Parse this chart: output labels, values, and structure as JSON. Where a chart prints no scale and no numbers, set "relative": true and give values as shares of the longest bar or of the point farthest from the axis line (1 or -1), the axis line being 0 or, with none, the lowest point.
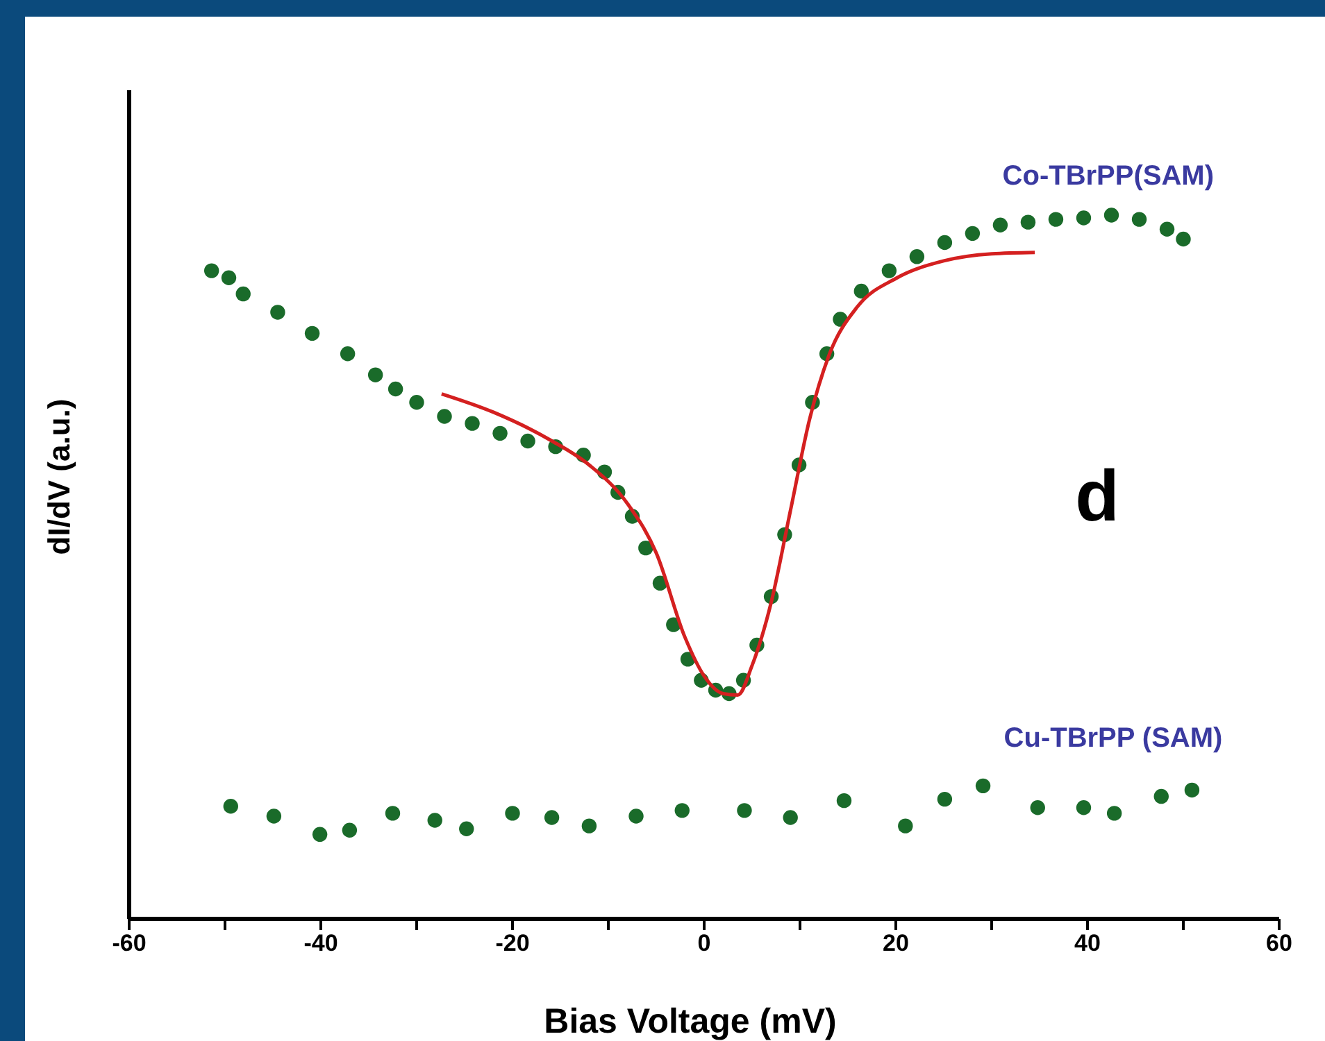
{
  "chart_data": {
    "type": "scatter",
    "xlabel": "Bias Voltage (mV)",
    "ylabel": "dI/dV (a.u.)",
    "relative": true,
    "xlim": [
      -60,
      60
    ],
    "xticks": [
      -60,
      {
        "value": -50,
        "label": null
      },
      -40,
      {
        "value": -30,
        "label": null
      },
      -20,
      {
        "value": -10,
        "label": null
      },
      0,
      {
        "value": 10,
        "label": null
      },
      20,
      {
        "value": 30,
        "label": null
      },
      40,
      {
        "value": 50,
        "label": null
      },
      60
    ],
    "marker": "circle",
    "grid": false,
    "annotations": [
      "d"
    ],
    "series": [
      {
        "name": "Co-TBrPP(SAM)",
        "color": "#1a6b2a",
        "x": [
          -51.4,
          -49.6,
          -48.1,
          -44.5,
          -40.9,
          -37.2,
          -34.3,
          -32.2,
          -30.0,
          -27.1,
          -24.2,
          -21.3,
          -18.4,
          -15.5,
          -12.6,
          -10.4,
          -9.0,
          -7.5,
          -6.1,
          -4.6,
          -3.2,
          -1.7,
          -0.3,
          1.2,
          2.6,
          4.1,
          5.5,
          7.0,
          8.4,
          9.9,
          11.3,
          12.8,
          14.2,
          16.4,
          19.3,
          22.2,
          25.1,
          28.0,
          30.9,
          33.8,
          36.7,
          39.6,
          42.5,
          45.4,
          48.3,
          50.0
        ],
        "values": [
          0.921,
          0.911,
          0.888,
          0.862,
          0.832,
          0.803,
          0.773,
          0.753,
          0.734,
          0.714,
          0.704,
          0.69,
          0.679,
          0.671,
          0.659,
          0.635,
          0.606,
          0.572,
          0.527,
          0.477,
          0.418,
          0.369,
          0.339,
          0.325,
          0.32,
          0.339,
          0.389,
          0.458,
          0.546,
          0.645,
          0.734,
          0.803,
          0.852,
          0.892,
          0.921,
          0.941,
          0.961,
          0.974,
          0.986,
          0.99,
          0.994,
          0.996,
          1.0,
          0.994,
          0.98,
          0.966
        ]
      },
      {
        "type": "line",
        "color": "#d42020",
        "marker": "none",
        "x": [
          -27.4,
          -22,
          -16,
          -12,
          -8,
          -5,
          -2,
          0,
          2,
          3.5,
          5,
          7,
          9,
          11,
          13,
          16,
          20,
          25,
          30,
          34.5
        ],
        "values": [
          0.746,
          0.72,
          0.68,
          0.645,
          0.59,
          0.52,
          0.4,
          0.345,
          0.32,
          0.318,
          0.36,
          0.45,
          0.58,
          0.71,
          0.8,
          0.87,
          0.91,
          0.935,
          0.945,
          0.947
        ]
      },
      {
        "name": "Cu-TBrPP (SAM)",
        "color": "#1a6b2a",
        "x": [
          -49.4,
          -44.9,
          -40.1,
          -37,
          -32.5,
          -28.1,
          -24.8,
          -20,
          -15.9,
          -12,
          -7.1,
          -2.3,
          4.2,
          9,
          14.6,
          21,
          25.1,
          29.1,
          34.8,
          39.6,
          42.8,
          47.7,
          50.9
        ],
        "values": [
          0.16,
          0.146,
          0.12,
          0.126,
          0.15,
          0.14,
          0.128,
          0.15,
          0.144,
          0.132,
          0.146,
          0.154,
          0.154,
          0.144,
          0.168,
          0.132,
          0.17,
          0.189,
          0.158,
          0.158,
          0.15,
          0.174,
          0.183
        ]
      }
    ]
  }
}
